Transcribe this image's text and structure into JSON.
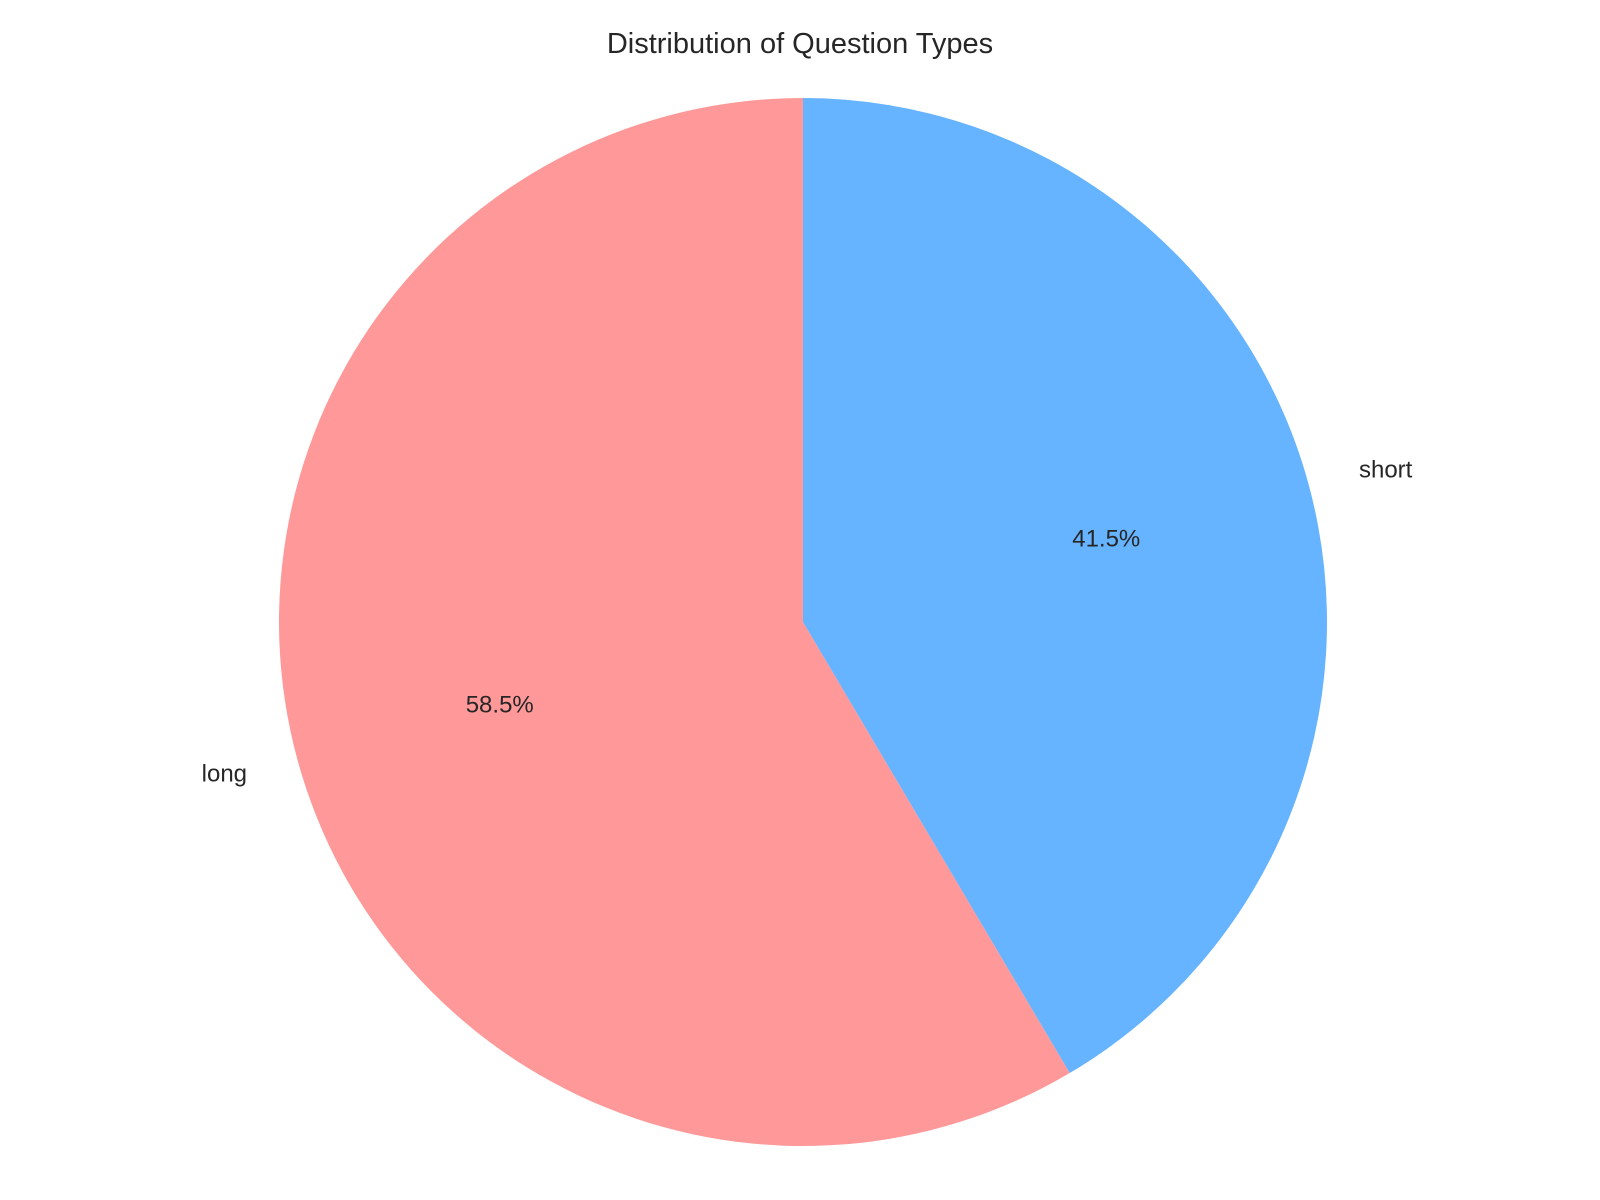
{
  "chart_data": {
    "type": "pie",
    "title": "Distribution of Question Types",
    "categories": [
      "long",
      "short"
    ],
    "values": [
      58.5,
      41.5
    ],
    "value_labels": [
      "58.5%",
      "41.5%"
    ],
    "colors": [
      "#FF9999",
      "#66B3FF"
    ],
    "start_angle_deg": 90,
    "direction": "counterclockwise",
    "legend": "none"
  }
}
